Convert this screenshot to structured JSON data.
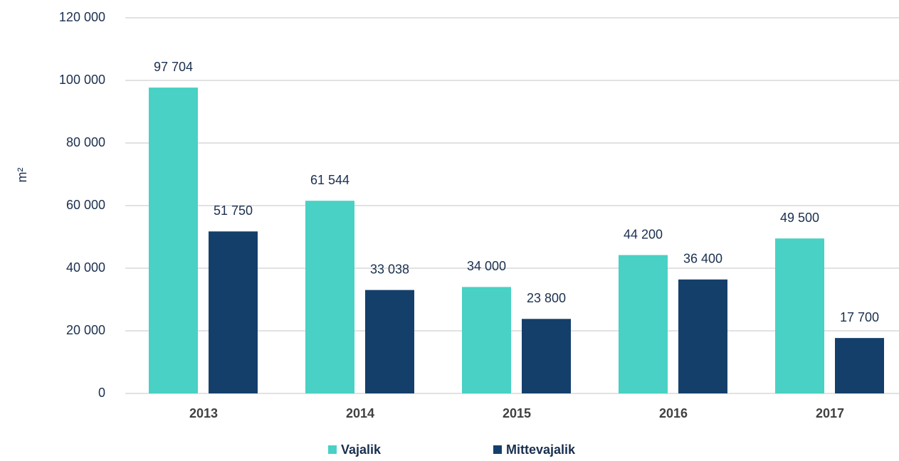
{
  "chart_data": {
    "type": "bar",
    "ylabel": "m²",
    "categories": [
      "2013",
      "2014",
      "2015",
      "2016",
      "2017"
    ],
    "series": [
      {
        "name": "Vajalik",
        "color": "#48d1c4",
        "values": [
          97704,
          61544,
          34000,
          44200,
          49500
        ],
        "value_labels": [
          "97 704",
          "61 544",
          "34 000",
          "44 200",
          "49 500"
        ]
      },
      {
        "name": "Mittevajalik",
        "color": "#143f6b",
        "values": [
          51750,
          33038,
          23800,
          36400,
          17700
        ],
        "value_labels": [
          "51 750",
          "33 038",
          "23 800",
          "36 400",
          "17 700"
        ]
      }
    ],
    "ylim": [
      0,
      120000
    ],
    "yticks": [
      0,
      {
        "value": 20000,
        "label": "20 000"
      },
      {
        "value": 40000,
        "label": "40 000"
      },
      {
        "value": 60000,
        "label": "60 000"
      },
      {
        "value": 80000,
        "label": "80 000"
      },
      {
        "value": 100000,
        "label": "100 000"
      },
      {
        "value": 120000,
        "label": "120 000"
      }
    ],
    "grid": true,
    "legend": "bottom"
  }
}
